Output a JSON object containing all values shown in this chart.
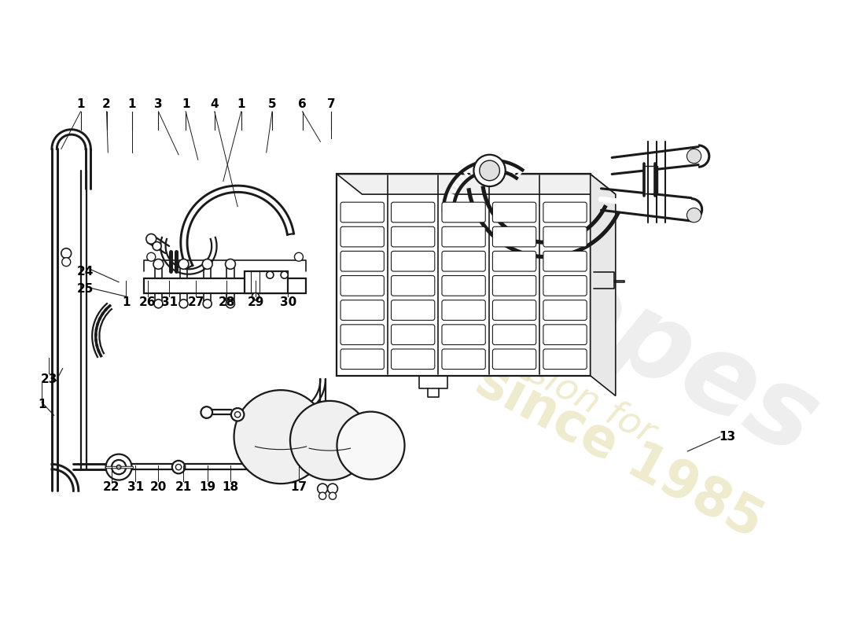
{
  "bg_color": "#ffffff",
  "line_color": "#1a1a1a",
  "label_color": "#000000",
  "top_labels": [
    [
      "1",
      112,
      108
    ],
    [
      "2",
      148,
      108
    ],
    [
      "1",
      183,
      108
    ],
    [
      "3",
      220,
      108
    ],
    [
      "1",
      258,
      108
    ],
    [
      "4",
      298,
      108
    ],
    [
      "1",
      335,
      108
    ],
    [
      "5",
      378,
      108
    ],
    [
      "6",
      420,
      108
    ],
    [
      "7",
      460,
      108
    ]
  ],
  "mid_labels": [
    [
      "24",
      118,
      340
    ],
    [
      "25",
      118,
      365
    ],
    [
      "1",
      175,
      383
    ],
    [
      "26",
      205,
      383
    ],
    [
      "31",
      235,
      383
    ],
    [
      "27",
      272,
      383
    ],
    [
      "28",
      315,
      383
    ],
    [
      "29",
      355,
      383
    ],
    [
      "30",
      400,
      383
    ]
  ],
  "bot_labels": [
    [
      "23",
      68,
      490
    ],
    [
      "1",
      58,
      525
    ],
    [
      "22",
      155,
      640
    ],
    [
      "31",
      188,
      640
    ],
    [
      "20",
      220,
      640
    ],
    [
      "21",
      255,
      640
    ],
    [
      "19",
      288,
      640
    ],
    [
      "18",
      320,
      640
    ],
    [
      "17",
      415,
      640
    ]
  ],
  "right_label": [
    "13",
    1010,
    570
  ]
}
